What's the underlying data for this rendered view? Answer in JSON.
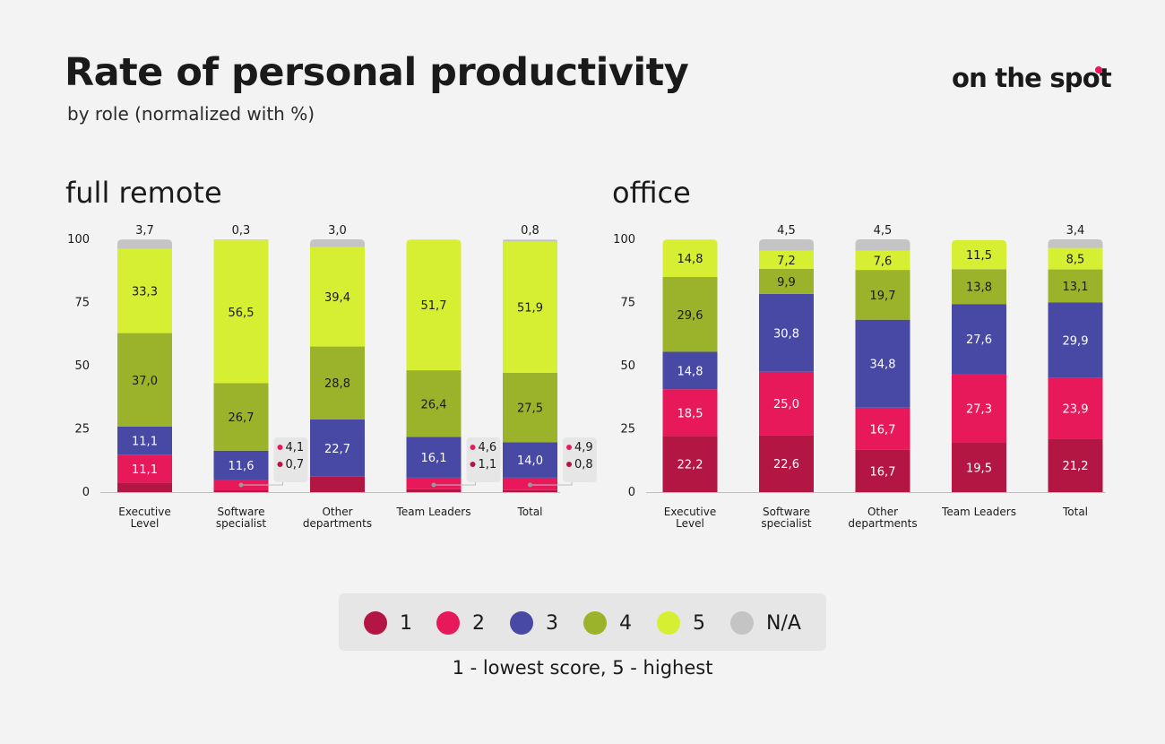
{
  "title": "Rate of personal productivity",
  "subtitle": "by role (normalized with %)",
  "logo": {
    "text": "on the spot",
    "dot_color": "#e8195a"
  },
  "colors": {
    "1": "#b31642",
    "2": "#e8195a",
    "3": "#4849a4",
    "4": "#9bb32a",
    "5": "#d7ef33",
    "na": "#c4c4c4"
  },
  "legend": {
    "items": [
      {
        "label": "1",
        "color": "#b31642"
      },
      {
        "label": "2",
        "color": "#e8195a"
      },
      {
        "label": "3",
        "color": "#4849a4"
      },
      {
        "label": "4",
        "color": "#9bb32a"
      },
      {
        "label": "5",
        "color": "#d7ef33"
      },
      {
        "label": "N/A",
        "color": "#c4c4c4"
      }
    ],
    "note": "1 - lowest score, 5 - highest"
  },
  "chart_data": [
    {
      "type": "bar",
      "stacked": true,
      "title": "full remote",
      "categories": [
        "Executive\nLevel",
        "Software\nspecialist",
        "Other\ndepartments",
        "Team Leaders",
        "Total"
      ],
      "ylim": [
        0,
        100
      ],
      "yticks": [
        0,
        25,
        50,
        75,
        100
      ],
      "series": [
        {
          "name": "1",
          "values": [
            3.7,
            0.7,
            6.1,
            1.1,
            0.8
          ],
          "labels": [
            "",
            "0,7",
            "",
            "1,1",
            "0,8"
          ]
        },
        {
          "name": "2",
          "values": [
            11.1,
            4.1,
            0,
            4.6,
            4.9
          ],
          "labels": [
            "11,1",
            "4,1",
            "",
            "4,6",
            "4,9"
          ]
        },
        {
          "name": "3",
          "values": [
            11.1,
            11.6,
            22.7,
            16.1,
            14.0
          ],
          "labels": [
            "11,1",
            "11,6",
            "22,7",
            "16,1",
            "14,0"
          ]
        },
        {
          "name": "4",
          "values": [
            37.0,
            26.7,
            28.8,
            26.4,
            27.5
          ],
          "labels": [
            "37,0",
            "26,7",
            "28,8",
            "26,4",
            "27,5"
          ]
        },
        {
          "name": "5",
          "values": [
            33.3,
            56.5,
            39.4,
            51.7,
            51.9
          ],
          "labels": [
            "33,3",
            "56,5",
            "39,4",
            "51,7",
            "51,9"
          ]
        },
        {
          "name": "N/A",
          "values": [
            3.7,
            0.3,
            3.0,
            0,
            0.8
          ],
          "labels": [
            "3,7",
            "0,3",
            "3,0",
            "",
            "0,8"
          ]
        }
      ],
      "callouts": [
        {
          "category": 1,
          "items": [
            {
              "series": "2",
              "label": "4,1"
            },
            {
              "series": "1",
              "label": "0,7"
            }
          ]
        },
        {
          "category": 3,
          "items": [
            {
              "series": "2",
              "label": "4,6"
            },
            {
              "series": "1",
              "label": "1,1"
            }
          ]
        },
        {
          "category": 4,
          "items": [
            {
              "series": "2",
              "label": "4,9"
            },
            {
              "series": "1",
              "label": "0,8"
            }
          ]
        }
      ]
    },
    {
      "type": "bar",
      "stacked": true,
      "title": "office",
      "categories": [
        "Executive\nLevel",
        "Software\nspecialist",
        "Other\ndepartments",
        "Team Leaders",
        "Total"
      ],
      "ylim": [
        0,
        100
      ],
      "yticks": [
        0,
        25,
        50,
        75,
        100
      ],
      "series": [
        {
          "name": "1",
          "values": [
            22.2,
            22.6,
            16.7,
            19.5,
            21.2
          ],
          "labels": [
            "22,2",
            "22,6",
            "16,7",
            "19,5",
            "21,2"
          ]
        },
        {
          "name": "2",
          "values": [
            18.5,
            25.0,
            16.7,
            27.3,
            23.9
          ],
          "labels": [
            "18,5",
            "25,0",
            "16,7",
            "27,3",
            "23,9"
          ]
        },
        {
          "name": "3",
          "values": [
            14.8,
            30.8,
            34.8,
            27.6,
            29.9
          ],
          "labels": [
            "14,8",
            "30,8",
            "34,8",
            "27,6",
            "29,9"
          ]
        },
        {
          "name": "4",
          "values": [
            29.6,
            9.9,
            19.7,
            13.8,
            13.1
          ],
          "labels": [
            "29,6",
            "9,9",
            "19,7",
            "13,8",
            "13,1"
          ]
        },
        {
          "name": "5",
          "values": [
            14.8,
            7.2,
            7.6,
            11.5,
            8.5
          ],
          "labels": [
            "14,8",
            "7,2",
            "7,6",
            "11,5",
            "8,5"
          ]
        },
        {
          "name": "N/A",
          "values": [
            0,
            4.5,
            4.5,
            0,
            3.4
          ],
          "labels": [
            "",
            "4,5",
            "4,5",
            "",
            "3,4"
          ]
        }
      ],
      "callouts": []
    }
  ]
}
